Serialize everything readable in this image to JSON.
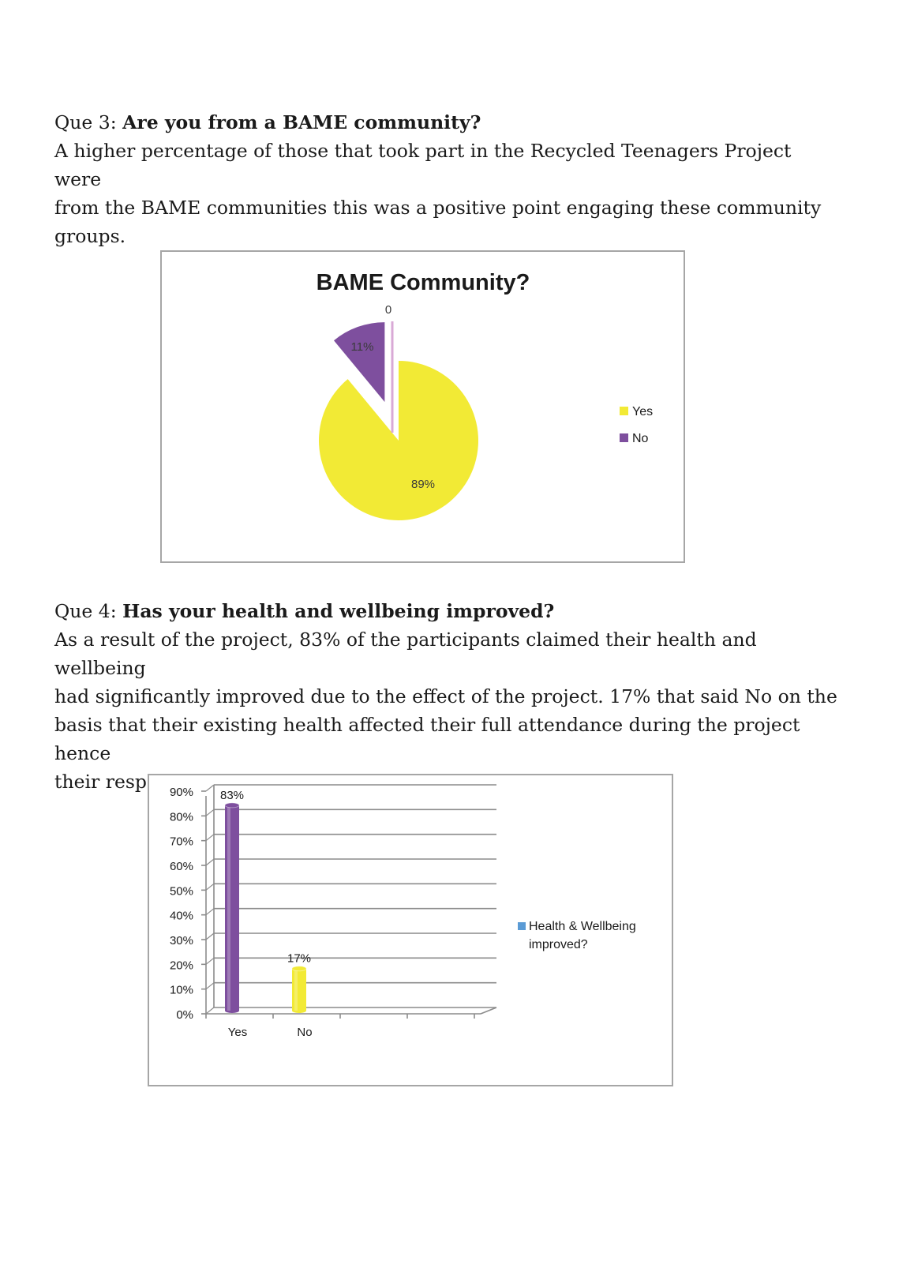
{
  "q3": {
    "prefix": "Que 3: ",
    "question": "Are you from a BAME community?",
    "body_lines": [
      "A higher percentage of those that took part in the Recycled Teenagers Project were",
      "from the BAME communities this was a positive point engaging these community",
      "groups."
    ]
  },
  "q4": {
    "prefix": "Que 4: ",
    "question": "Has your health and wellbeing improved?",
    "body_lines": [
      "As a result of the project, 83% of the participants claimed their health and wellbeing",
      "had significantly improved due to the effect of the project. 17% that said No on the",
      "basis that their existing health affected their full attendance during the project hence",
      "their response to the question."
    ]
  },
  "colors": {
    "yellow": "#f2ea35",
    "purple": "#7e4f9e",
    "legend_blue": "#5b9bd5",
    "grid": "#8c8c8c"
  },
  "chart_data": [
    {
      "type": "pie",
      "title": "BAME Community?",
      "categories": [
        "Yes",
        "No",
        ""
      ],
      "values": [
        89,
        11,
        0
      ],
      "data_labels": [
        "89%",
        "11%",
        "0"
      ],
      "colors": [
        "#f2ea35",
        "#7e4f9e",
        "#c0c0c0"
      ],
      "legend": [
        "Yes",
        "No"
      ],
      "legend_position": "right"
    },
    {
      "type": "bar",
      "categories": [
        "Yes",
        "No"
      ],
      "values": [
        83,
        17
      ],
      "data_labels": [
        "83%",
        "17%"
      ],
      "colors": [
        "#7e4f9e",
        "#f2ea35"
      ],
      "series": [
        {
          "name": "Health & Wellbeing improved?",
          "values": [
            83,
            17
          ]
        }
      ],
      "legend_lines": [
        "Health & Wellbeing",
        "improved?"
      ],
      "ylim": [
        0,
        90
      ],
      "yticks": [
        "0%",
        "10%",
        "20%",
        "30%",
        "40%",
        "50%",
        "60%",
        "70%",
        "80%",
        "90%"
      ],
      "grid": true,
      "legend_position": "right"
    }
  ]
}
